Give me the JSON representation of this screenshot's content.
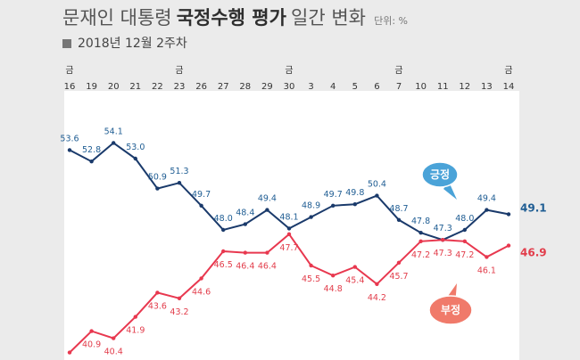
{
  "header": {
    "title_pre": "문재인 대통령",
    "title_bold": "국정수행 평가",
    "title_post": "일간 변화",
    "unit": "단위: %",
    "subtitle": "2018년 12월 2주차"
  },
  "chart_data": {
    "type": "line",
    "x": [
      "16",
      "19",
      "20",
      "21",
      "22",
      "23",
      "26",
      "27",
      "28",
      "29",
      "30",
      "3",
      "4",
      "5",
      "6",
      "7",
      "10",
      "11",
      "12",
      "13",
      "14"
    ],
    "weekday_marks": [
      "금",
      "",
      "",
      "",
      "",
      "금",
      "",
      "",
      "",
      "",
      "금",
      "",
      "",
      "",
      "",
      "금",
      "",
      "",
      "",
      "",
      "금"
    ],
    "series": [
      {
        "name": "긍정",
        "color": "#1a3a6b",
        "label_color": "#1f5d93",
        "values": [
          53.6,
          52.8,
          54.1,
          53.0,
          50.9,
          51.3,
          49.7,
          48.0,
          48.4,
          49.4,
          48.1,
          48.9,
          49.7,
          49.8,
          50.4,
          48.7,
          47.8,
          47.3,
          48.0,
          49.4,
          49.1
        ]
      },
      {
        "name": "부정",
        "color": "#e8384f",
        "label_color": "#e23d4b",
        "values": [
          39.4,
          40.9,
          40.4,
          41.9,
          43.6,
          43.2,
          44.6,
          46.5,
          46.4,
          46.4,
          47.7,
          45.5,
          44.8,
          45.4,
          44.2,
          45.7,
          47.2,
          47.3,
          47.2,
          46.1,
          46.9
        ]
      }
    ],
    "end_labels": [
      "49.1",
      "46.9"
    ],
    "bubbles": [
      "긍정",
      "부정"
    ],
    "ylim": [
      38,
      56
    ]
  }
}
